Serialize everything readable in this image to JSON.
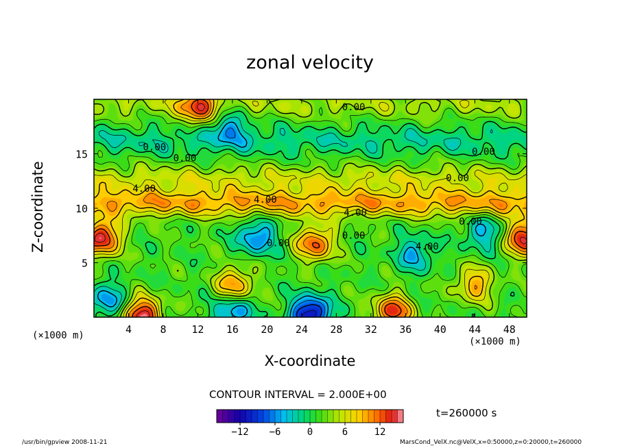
{
  "chart_data": {
    "type": "heatmap",
    "title": "zonal velocity",
    "xlabel": "X-coordinate",
    "ylabel": "Z-coordinate",
    "x_unit": "(×1000 m)",
    "y_unit": "(×1000 m)",
    "xlim": [
      0,
      50
    ],
    "ylim": [
      0,
      20
    ],
    "x_ticks": [
      4,
      8,
      12,
      16,
      20,
      24,
      28,
      32,
      36,
      40,
      44,
      48
    ],
    "y_ticks": [
      5,
      10,
      15
    ],
    "contour_labels": [
      {
        "text": "0.00",
        "x": 30,
        "z": 19.0
      },
      {
        "text": "0.00",
        "x": 7,
        "z": 15.3
      },
      {
        "text": "0.00",
        "x": 10.5,
        "z": 14.3
      },
      {
        "text": "0.00",
        "x": 45,
        "z": 14.9
      },
      {
        "text": "0.00",
        "x": 42,
        "z": 12.5
      },
      {
        "text": "4.00",
        "x": 5.8,
        "z": 11.5
      },
      {
        "text": "4.00",
        "x": 19.8,
        "z": 10.5
      },
      {
        "text": "4.00",
        "x": 30.2,
        "z": 9.3
      },
      {
        "text": "0.00",
        "x": 43.5,
        "z": 8.5
      },
      {
        "text": "0.00",
        "x": 30,
        "z": 7.2
      },
      {
        "text": "0.00",
        "x": 21.3,
        "z": 6.5
      },
      {
        "text": "4.00",
        "x": 38.5,
        "z": 6.2
      }
    ],
    "features": [
      {
        "kind": "max",
        "x": 0.8,
        "z": 7.3,
        "value": 14
      },
      {
        "kind": "max",
        "x": 49.8,
        "z": 7.3,
        "value": 14
      },
      {
        "kind": "max",
        "x": 25.5,
        "z": 6.8,
        "value": 11
      },
      {
        "kind": "max",
        "x": 5.5,
        "z": 0.2,
        "value": 14
      },
      {
        "kind": "max",
        "x": 34.5,
        "z": 0.5,
        "value": 12
      },
      {
        "kind": "max",
        "x": 16.2,
        "z": 3.0,
        "value": 9
      },
      {
        "kind": "max",
        "x": 44,
        "z": 3.0,
        "value": 8
      },
      {
        "kind": "max",
        "x": 12,
        "z": 19.3,
        "value": 10
      },
      {
        "kind": "min",
        "x": 25,
        "z": 0.3,
        "value": -14
      },
      {
        "kind": "min",
        "x": 16,
        "z": 0.5,
        "value": -8
      },
      {
        "kind": "min",
        "x": 18.8,
        "z": 7.4,
        "value": -8
      },
      {
        "kind": "min",
        "x": 37,
        "z": 5.8,
        "value": -6
      },
      {
        "kind": "min",
        "x": 45,
        "z": 7.8,
        "value": -6
      },
      {
        "kind": "min",
        "x": 15.5,
        "z": 17.5,
        "value": -6
      },
      {
        "kind": "min",
        "x": 1.5,
        "z": 1.5,
        "value": -7
      }
    ],
    "jets": [
      {
        "z": 10.5,
        "value": 8
      },
      {
        "z": 12.7,
        "value": 4
      },
      {
        "z": 19.6,
        "value": 3
      },
      {
        "z": 16.2,
        "value": -3
      }
    ],
    "contour_interval": "CONTOUR INTERVAL = 2.000E+00",
    "colorbar": {
      "min": -16,
      "max": 16,
      "ticks": [
        -12,
        -6,
        0,
        6,
        12
      ]
    },
    "time_label": "t=260000 s",
    "grid": false
  },
  "footer": {
    "left": "/usr/bin/gpview   2008-11-21",
    "right": "MarsCond_VelX.nc@VelX,x=0:50000,z=0:20000,t=260000"
  }
}
